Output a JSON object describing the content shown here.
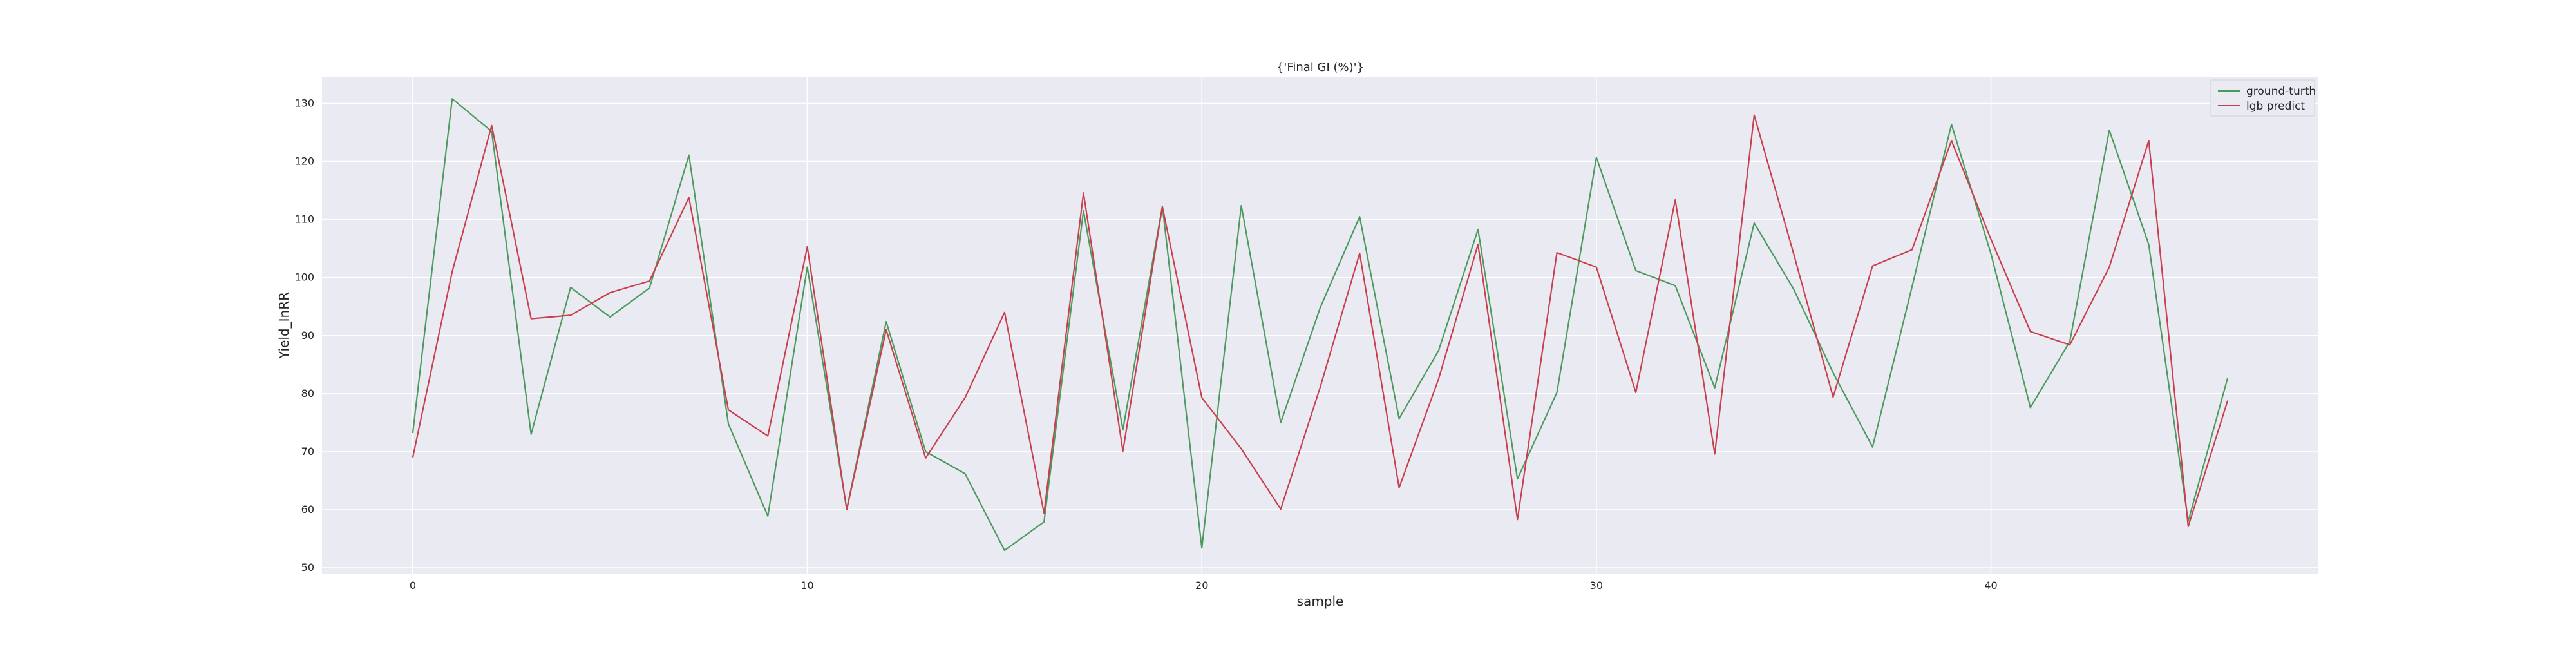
{
  "chart_data": {
    "type": "line",
    "title": "{'Final GI (%)'}",
    "xlabel": "sample",
    "ylabel": "Yield_InRR",
    "xlim": [
      -2.3,
      48.3
    ],
    "ylim": [
      49,
      134.5
    ],
    "xticks": [
      0,
      10,
      20,
      30,
      40
    ],
    "yticks": [
      50,
      60,
      70,
      80,
      90,
      100,
      110,
      120,
      130
    ],
    "grid": true,
    "legend_position": "upper right",
    "x": [
      0,
      1,
      2,
      3,
      4,
      5,
      6,
      7,
      8,
      9,
      10,
      11,
      12,
      13,
      14,
      15,
      16,
      17,
      18,
      19,
      20,
      21,
      22,
      23,
      24,
      25,
      26,
      27,
      28,
      29,
      30,
      31,
      32,
      33,
      34,
      35,
      36,
      37,
      38,
      39,
      40,
      41,
      42,
      43,
      44,
      45,
      46
    ],
    "series": [
      {
        "name": "ground-turth",
        "color": "#4c9a5e",
        "values": [
          73.2,
          130.8,
          125.2,
          73.0,
          98.3,
          93.2,
          98.2,
          121.1,
          74.8,
          58.9,
          101.8,
          60.1,
          92.4,
          70.0,
          66.2,
          53.0,
          57.9,
          111.5,
          73.8,
          112.3,
          53.4,
          112.4,
          75.0,
          94.8,
          110.5,
          75.7,
          87.4,
          108.3,
          65.3,
          80.2,
          120.7,
          101.2,
          98.6,
          81.0,
          109.4,
          98.0,
          83.6,
          70.8,
          98.4,
          126.4,
          104.1,
          77.6,
          89.0,
          125.4,
          105.7,
          58.0,
          82.7
        ]
      },
      {
        "name": "lgb predict",
        "color": "#c8404e",
        "values": [
          69.0,
          101.0,
          126.2,
          92.9,
          93.5,
          97.4,
          99.4,
          113.8,
          77.2,
          72.7,
          105.3,
          60.0,
          91.0,
          68.9,
          79.3,
          94.0,
          59.4,
          114.6,
          70.1,
          112.2,
          79.3,
          70.5,
          60.1,
          81.1,
          104.2,
          63.8,
          82.5,
          105.7,
          58.3,
          104.3,
          101.8,
          80.2,
          113.4,
          69.6,
          128.0,
          104.1,
          79.4,
          102.0,
          104.8,
          123.6,
          106.6,
          90.7,
          88.4,
          101.8,
          123.6,
          57.1,
          78.8
        ]
      }
    ]
  }
}
